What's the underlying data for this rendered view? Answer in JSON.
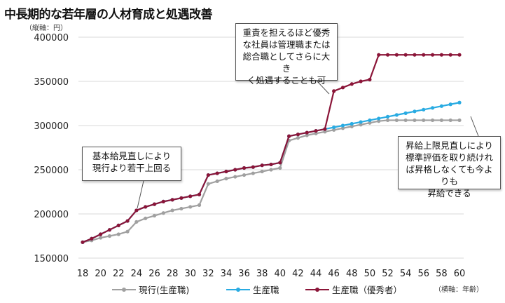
{
  "title": "中長期的な若年層の人材育成と処遇改善",
  "y_unit": "（縦軸：円）",
  "x_unit": "（横軸：年齢）",
  "colors": {
    "current": "#a0a0a0",
    "production": "#29abe2",
    "excellent": "#8b1538"
  },
  "callouts": {
    "base": "基本給見直しにより\n現行より若干上回る",
    "excellent": "重責を担えるほど優秀\nな社員は管理職または\n総合職としてさらに大き\nく処遇することも可",
    "cap": "昇給上限見直しにより\n標準評価を取り続けれ\nば昇格しなくても今よりも\n昇給できる"
  },
  "chart_data": {
    "type": "line",
    "title": "中長期的な若年層の人材育成と処遇改善",
    "xlabel": "（横軸：年齢）",
    "ylabel": "（縦軸：円）",
    "xlim": [
      18,
      60
    ],
    "ylim": [
      150000,
      400000
    ],
    "x_ticks": [
      18,
      20,
      22,
      24,
      26,
      28,
      30,
      32,
      34,
      36,
      38,
      40,
      42,
      44,
      46,
      48,
      50,
      52,
      54,
      56,
      58,
      60
    ],
    "y_ticks": [
      150000,
      200000,
      250000,
      300000,
      350000,
      400000
    ],
    "grid": "horizontal",
    "legend": "bottom",
    "x": [
      18,
      19,
      20,
      21,
      22,
      23,
      24,
      25,
      26,
      27,
      28,
      29,
      30,
      31,
      32,
      33,
      34,
      35,
      36,
      37,
      38,
      39,
      40,
      41,
      42,
      43,
      44,
      45,
      46,
      47,
      48,
      49,
      50,
      51,
      52,
      53,
      54,
      55,
      56,
      57,
      58,
      59,
      60
    ],
    "series": [
      {
        "name": "現行(生産職)",
        "values": [
          168000,
          170000,
          173000,
          175000,
          177000,
          180000,
          191000,
          195000,
          198000,
          201000,
          204000,
          206000,
          208000,
          210000,
          234000,
          237000,
          240000,
          242000,
          244000,
          246000,
          248000,
          250000,
          252000,
          283000,
          286000,
          289000,
          291000,
          293000,
          295000,
          297000,
          299000,
          301000,
          303000,
          305000,
          306000,
          306000,
          306000,
          306000,
          306000,
          306000,
          306000,
          306000,
          306000
        ]
      },
      {
        "name": "生産職",
        "values": [
          168000,
          172000,
          177000,
          182000,
          187000,
          192000,
          204000,
          208000,
          211000,
          214000,
          216000,
          218000,
          220000,
          222000,
          244000,
          246000,
          248000,
          250000,
          252000,
          253000,
          255000,
          256000,
          258000,
          288000,
          290000,
          292000,
          294000,
          296000,
          298000,
          300000,
          302000,
          304000,
          306000,
          308000,
          310000,
          312000,
          314000,
          316000,
          318000,
          320000,
          322000,
          324000,
          326000
        ]
      },
      {
        "name": "生産職（優秀者）",
        "values": [
          168000,
          172000,
          177000,
          182000,
          187000,
          192000,
          204000,
          208000,
          211000,
          214000,
          216000,
          218000,
          220000,
          222000,
          244000,
          246000,
          248000,
          250000,
          252000,
          253000,
          255000,
          256000,
          258000,
          288000,
          290000,
          292000,
          294000,
          296000,
          339000,
          343000,
          347000,
          350000,
          352000,
          380000,
          380000,
          380000,
          380000,
          380000,
          380000,
          380000,
          380000,
          380000,
          380000
        ]
      }
    ]
  }
}
